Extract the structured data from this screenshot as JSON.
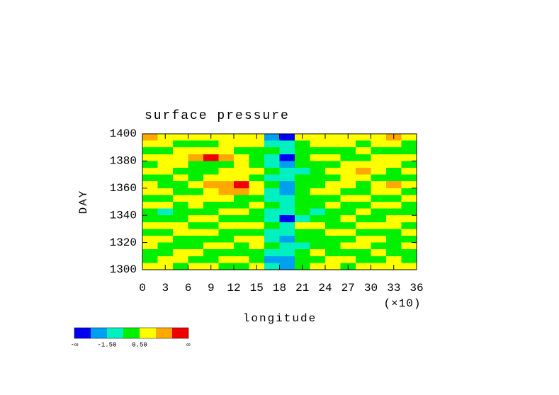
{
  "chart_data": {
    "type": "contour",
    "title": "surface pressure",
    "xlabel": "longitude",
    "x_multiplier": "(×10)",
    "ylabel": "DAY",
    "xlim": [
      0,
      36
    ],
    "xticks": [
      0,
      3,
      6,
      9,
      12,
      15,
      18,
      21,
      24,
      27,
      30,
      33,
      36
    ],
    "ylim": [
      1300,
      1400
    ],
    "yticks": [
      1300,
      1320,
      1340,
      1360,
      1380,
      1400
    ],
    "x": [
      1,
      3,
      5,
      7,
      9,
      11,
      13,
      15,
      17,
      19,
      21,
      23,
      25,
      27,
      29,
      31,
      33,
      35
    ],
    "y": [
      1302.5,
      1307.5,
      1312.5,
      1317.5,
      1322.5,
      1327.5,
      1332.5,
      1337.5,
      1342.5,
      1347.5,
      1352.5,
      1357.5,
      1362.5,
      1367.5,
      1372.5,
      1377.5,
      1382.5,
      1387.5,
      1392.5,
      1397.5
    ],
    "z": [
      [
        1,
        1,
        0,
        1,
        1,
        0,
        0,
        1,
        -1,
        -2,
        0,
        1,
        1,
        0,
        1,
        1,
        1,
        1
      ],
      [
        0,
        1,
        1,
        0,
        0,
        1,
        1,
        0,
        -2,
        -2,
        0,
        0,
        1,
        1,
        0,
        0,
        1,
        0
      ],
      [
        0,
        0,
        1,
        1,
        0,
        0,
        0,
        0,
        -1,
        -1,
        0,
        1,
        0,
        0,
        0,
        1,
        0,
        0
      ],
      [
        1,
        0,
        0,
        0,
        1,
        1,
        0,
        1,
        0,
        -1,
        -1,
        0,
        0,
        1,
        1,
        0,
        0,
        1
      ],
      [
        1,
        1,
        0,
        0,
        0,
        0,
        1,
        1,
        -1,
        -2,
        0,
        0,
        0,
        0,
        1,
        1,
        0,
        0
      ],
      [
        0,
        0,
        1,
        1,
        1,
        0,
        0,
        0,
        -1,
        -1,
        0,
        0,
        1,
        1,
        0,
        0,
        0,
        1
      ],
      [
        1,
        1,
        1,
        0,
        0,
        1,
        1,
        1,
        0,
        -1,
        1,
        1,
        0,
        0,
        1,
        1,
        1,
        0
      ],
      [
        0,
        0,
        0,
        1,
        1,
        0,
        0,
        0,
        -1,
        -3,
        -1,
        0,
        0,
        1,
        0,
        0,
        1,
        1
      ],
      [
        0,
        -1,
        0,
        0,
        0,
        1,
        1,
        0,
        -1,
        -1,
        0,
        -1,
        0,
        0,
        1,
        0,
        0,
        0
      ],
      [
        1,
        1,
        0,
        1,
        0,
        0,
        0,
        1,
        0,
        -1,
        0,
        0,
        1,
        0,
        0,
        1,
        1,
        0
      ],
      [
        0,
        0,
        1,
        1,
        1,
        1,
        0,
        0,
        -1,
        -1,
        0,
        0,
        0,
        1,
        1,
        0,
        0,
        1
      ],
      [
        1,
        1,
        0,
        0,
        1,
        2,
        2,
        1,
        -1,
        -2,
        0,
        1,
        1,
        0,
        0,
        1,
        1,
        0
      ],
      [
        1,
        0,
        0,
        1,
        2,
        2,
        3,
        1,
        0,
        -2,
        0,
        0,
        1,
        1,
        0,
        1,
        2,
        1
      ],
      [
        0,
        0,
        1,
        0,
        1,
        1,
        1,
        0,
        -1,
        -1,
        0,
        0,
        0,
        1,
        1,
        0,
        0,
        0
      ],
      [
        1,
        1,
        0,
        0,
        0,
        1,
        1,
        1,
        0,
        -1,
        -1,
        0,
        1,
        1,
        2,
        1,
        0,
        1
      ],
      [
        0,
        1,
        1,
        0,
        0,
        0,
        1,
        0,
        -1,
        -2,
        0,
        0,
        0,
        1,
        1,
        1,
        1,
        0
      ],
      [
        1,
        1,
        1,
        2,
        3,
        2,
        1,
        0,
        -1,
        -3,
        0,
        1,
        1,
        0,
        0,
        1,
        1,
        1
      ],
      [
        0,
        0,
        1,
        1,
        1,
        1,
        0,
        0,
        0,
        -1,
        0,
        0,
        0,
        0,
        1,
        0,
        0,
        0
      ],
      [
        1,
        1,
        0,
        0,
        0,
        1,
        1,
        1,
        -1,
        -1,
        0,
        1,
        1,
        1,
        0,
        1,
        1,
        0
      ],
      [
        2,
        1,
        1,
        1,
        1,
        1,
        1,
        1,
        -2,
        -3,
        1,
        1,
        1,
        1,
        1,
        1,
        2,
        1
      ]
    ],
    "levels": [
      -2.5,
      -1.5,
      -0.5,
      0.5,
      1.5,
      2.5
    ],
    "colors": [
      "#0000f0",
      "#00a0f0",
      "#00f0c0",
      "#00f000",
      "#ffff00",
      "#ffa800",
      "#f00000"
    ],
    "level_labels": [
      {
        "value": -1.5,
        "label": "-1.50"
      },
      {
        "value": 0.5,
        "label": "0.50"
      }
    ],
    "colorbar_ends": [
      "-∞",
      "∞"
    ]
  }
}
